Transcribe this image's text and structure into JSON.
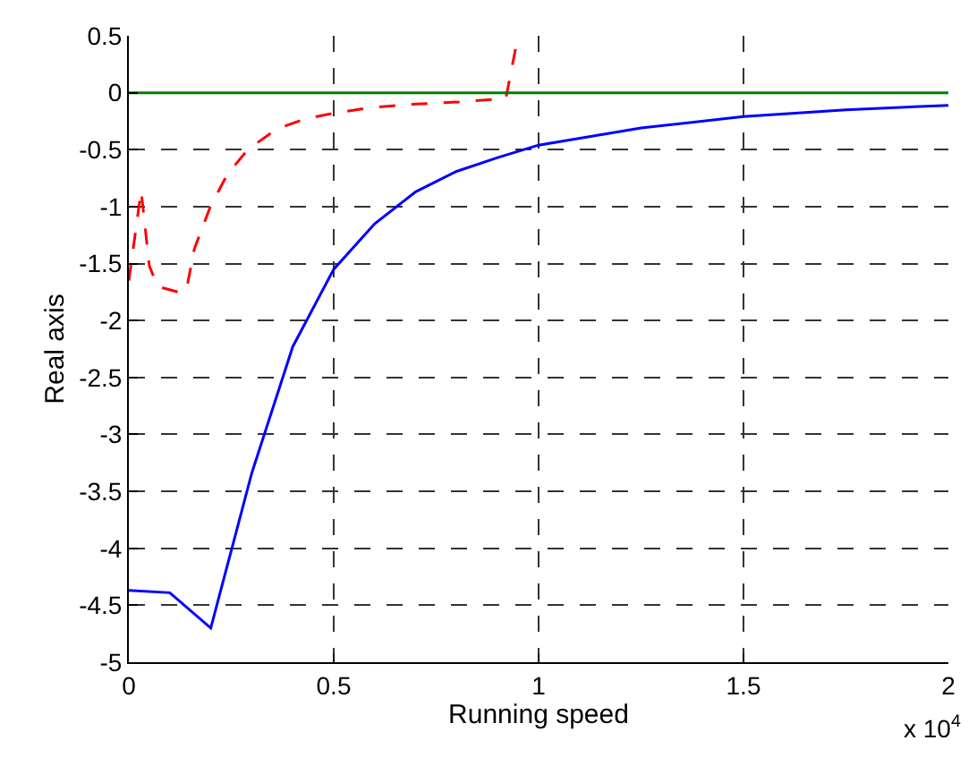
{
  "chart_data": {
    "type": "line",
    "xlabel": "Running speed",
    "ylabel": "Real axis",
    "annotations": [
      "x 10$^{4}$"
    ],
    "xlim": [
      0,
      2
    ],
    "xticks": [
      0,
      0.5,
      1,
      1.5,
      2
    ],
    "ylim": [
      -5,
      0.5
    ],
    "yticks": [
      0.5,
      0,
      -0.5,
      -1,
      -1.5,
      -2,
      -2.5,
      -3,
      -3.5,
      -4,
      -4.5,
      -5
    ],
    "grid": true,
    "marker": "none",
    "series": [
      {
        "color": "#0000ff",
        "line_style": "solid",
        "x": [
          0,
          0.1,
          0.2,
          0.3,
          0.4,
          0.5,
          0.6,
          0.7,
          0.8,
          0.9,
          1.0,
          1.25,
          1.5,
          1.75,
          2.0
        ],
        "values": [
          -4.37,
          -4.39,
          -4.7,
          -3.34,
          -2.23,
          -1.55,
          -1.15,
          -0.87,
          -0.69,
          -0.57,
          -0.46,
          -0.31,
          -0.21,
          -0.15,
          -0.11
        ]
      },
      {
        "color": "#ff0000",
        "line_style": "dashed",
        "x": [
          0,
          0.03,
          0.05,
          0.07,
          0.12,
          0.14,
          0.16,
          0.2,
          0.24,
          0.29,
          0.36,
          0.43,
          0.5,
          0.59,
          0.7,
          0.81,
          0.92,
          0.95
        ],
        "values": [
          -1.65,
          -0.86,
          -1.52,
          -1.7,
          -1.75,
          -1.74,
          -1.37,
          -0.99,
          -0.72,
          -0.5,
          -0.32,
          -0.23,
          -0.18,
          -0.13,
          -0.1,
          -0.08,
          -0.05,
          0.5
        ]
      },
      {
        "color": "#008000",
        "line_style": "solid",
        "x": [
          0,
          2
        ],
        "values": [
          0,
          0
        ]
      }
    ]
  }
}
